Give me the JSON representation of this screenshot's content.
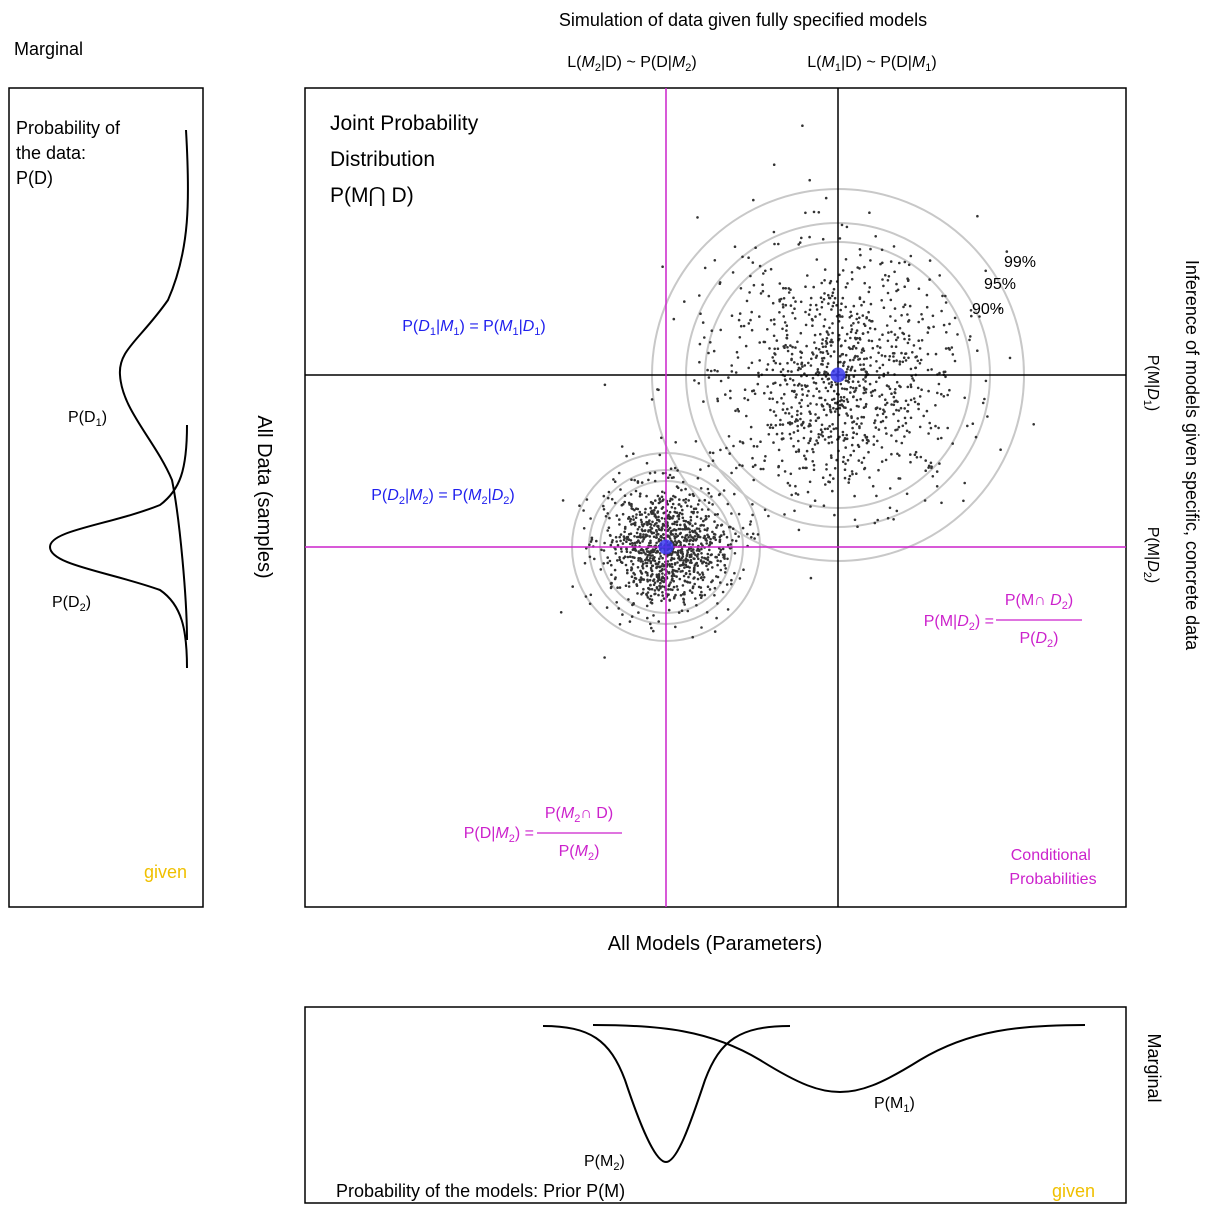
{
  "top_title": "Simulation of data given fully specified models",
  "top_labels": {
    "lik_m2": {
      "a": "L(",
      "m": "M",
      "sub": "2",
      "b": "|D) ~ P(D|",
      "m2": "M",
      "sub2": "2",
      "c": ")"
    },
    "lik_m1": {
      "a": "L(",
      "m": "M",
      "sub": "1",
      "b": "|D) ~ P(D|",
      "m2": "M",
      "sub2": "1",
      "c": ")"
    }
  },
  "left_panel": {
    "heading": "Marginal",
    "title_lines": [
      "Probability of",
      "the data:",
      "P(D)"
    ],
    "d1_label": {
      "a": "P(D",
      "sub": "1",
      "b": ")"
    },
    "d2_label": {
      "a": "P(D",
      "sub": "2",
      "b": ")"
    },
    "given": "given"
  },
  "main_panel": {
    "joint_lines": [
      "Joint Probability",
      "Distribution",
      "P(M⋂ D)"
    ],
    "eq1": {
      "a": "P(",
      "d": "D",
      "s1": "1",
      "b": "|",
      "m": "M",
      "s2": "1",
      "c": ") = P(",
      "m2": "M",
      "s3": "1",
      "e": "|",
      "d2": "D",
      "s4": "1",
      "f": ")"
    },
    "eq2": {
      "a": "P(",
      "d": "D",
      "s1": "2",
      "b": "|",
      "m": "M",
      "s2": "2",
      "c": ") = P(",
      "m2": "M",
      "s3": "2",
      "e": "|",
      "d2": "D",
      "s4": "2",
      "f": ")"
    },
    "pct": [
      "99%",
      "95%",
      "90%"
    ],
    "frac_right": {
      "lhs": {
        "a": "P(M|",
        "d": "D",
        "s": "2",
        "b": ") ="
      },
      "num": {
        "a": "P(M∩ ",
        "d": "D",
        "s": "2",
        "b": ")"
      },
      "den": {
        "a": "P(",
        "d": "D",
        "s": "2",
        "b": ")"
      }
    },
    "frac_left": {
      "lhs": {
        "a": "P(D|",
        "m": "M",
        "s": "2",
        "b": ") ="
      },
      "num": {
        "a": "P(",
        "m": "M",
        "s": "2",
        "b": "∩ D)"
      },
      "den": {
        "a": "P(",
        "m": "M",
        "s": "2",
        "b": ")"
      }
    },
    "conditional_lines": [
      "Conditional",
      "Probabilities"
    ]
  },
  "axis_left": "All Data (samples)",
  "axis_bottom": "All Models (Parameters)",
  "right_side": {
    "inference": "Inference of models given specific, concrete data",
    "pm_d1": {
      "a": "P(M|",
      "d": "D",
      "s": "1",
      "b": ")"
    },
    "pm_d2": {
      "a": "P(M|",
      "d": "D",
      "s": "2",
      "b": ")"
    }
  },
  "bottom_panel": {
    "marginal": "Marginal",
    "m1_label": {
      "a": "P(M",
      "sub": "1",
      "b": ")"
    },
    "m2_label": {
      "a": "P(M",
      "sub": "2",
      "b": ")"
    },
    "caption": "Probability of the models: Prior P(M)",
    "given": "given"
  },
  "colors": {
    "blue": "#2020ee",
    "magenta": "#cc22cc",
    "gold": "#f0c000",
    "circle": "#c8c8c8",
    "point": "#333333"
  }
}
